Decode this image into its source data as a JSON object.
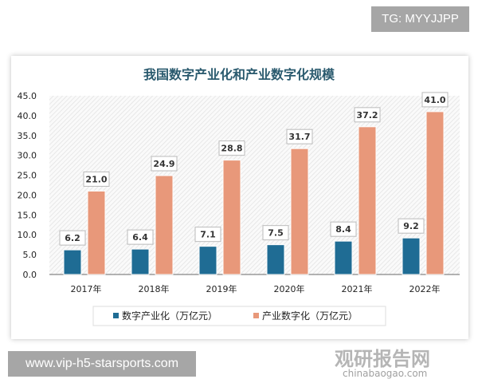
{
  "overlay": {
    "tg_label": "TG: MYYJJPP",
    "site_label": "www.vip-h5-starsports.com"
  },
  "watermark": {
    "name": "观研报告网",
    "url": "chinabaogao.com"
  },
  "chart_data": {
    "type": "bar",
    "title": "我国数字产业化和产业数字化规模",
    "categories": [
      "2017年",
      "2018年",
      "2019年",
      "2020年",
      "2021年",
      "2022年"
    ],
    "series": [
      {
        "name": "数字产业化（万亿元）",
        "values": [
          6.2,
          6.4,
          7.1,
          7.5,
          8.4,
          9.2
        ],
        "color": "#1f6c94"
      },
      {
        "name": "产业数字化（万亿元）",
        "values": [
          21.0,
          24.9,
          28.8,
          31.7,
          37.2,
          41.0
        ],
        "color": "#e8987a"
      }
    ],
    "yticks": [
      "0.0",
      "5.0",
      "10.0",
      "15.0",
      "20.0",
      "25.0",
      "30.0",
      "35.0",
      "40.0",
      "45.0"
    ],
    "ylim": [
      0,
      45
    ],
    "grid": false,
    "legend": "bottom"
  }
}
